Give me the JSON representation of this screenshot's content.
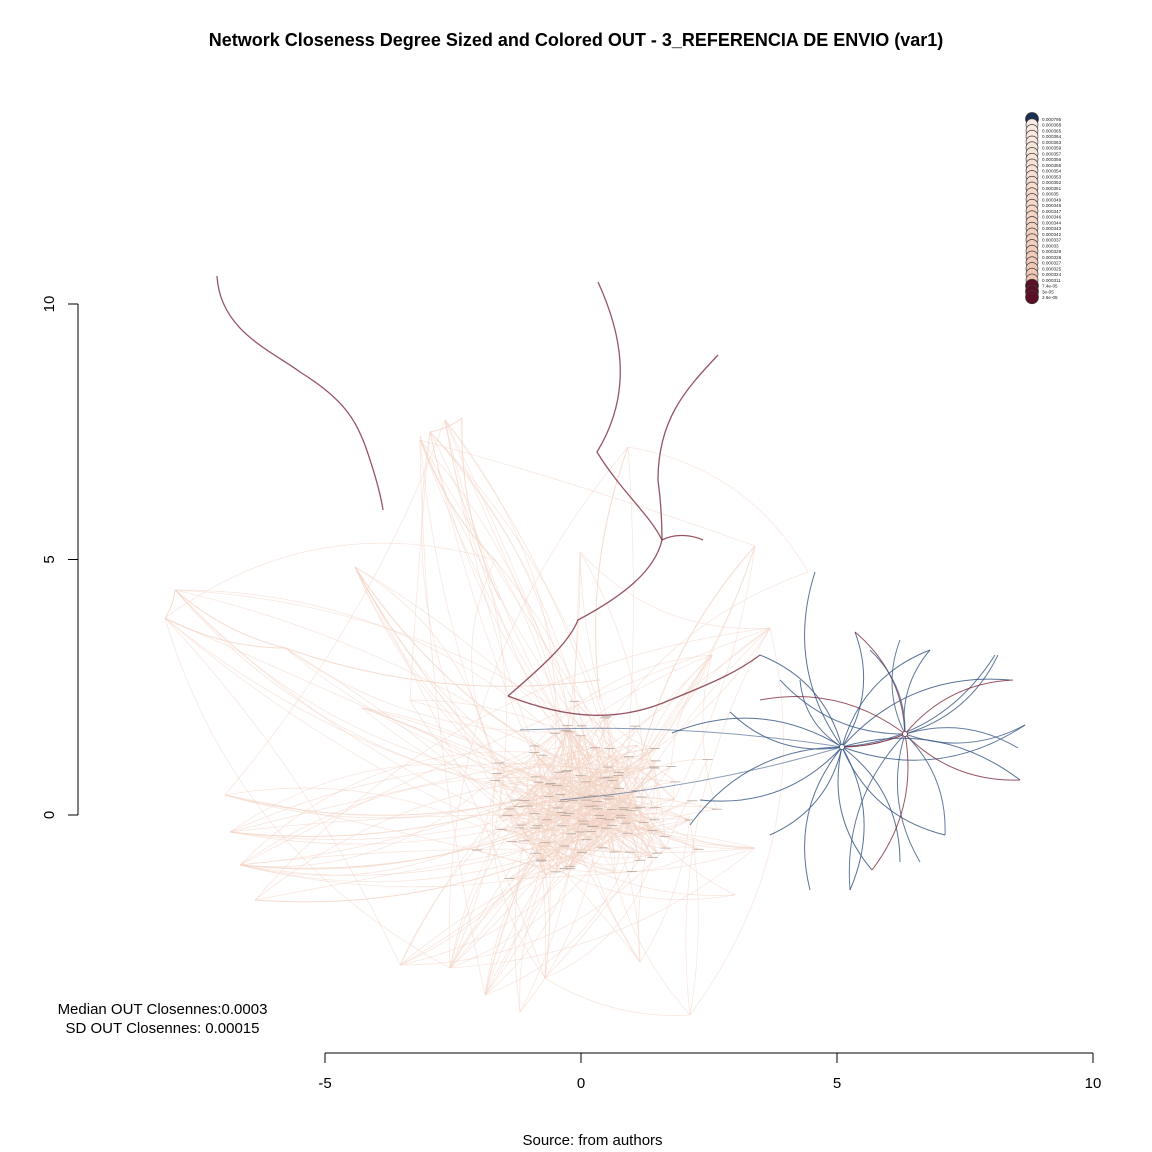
{
  "title": "Network Closeness Degree Sized and Colored OUT - 3_REFERENCIA DE ENVIO (var1)",
  "stats": {
    "median": "Median OUT Closennes:0.0003",
    "sd": "SD OUT Closennes: 0.00015"
  },
  "caption": "Source: from authors",
  "colors": {
    "edge_light": "#f3d3c4",
    "edge_dark_red": "#7d2a3c",
    "edge_blue": "#3c5a86",
    "legend_top": "#1b2f52",
    "legend_bottom": "#5b0f26"
  },
  "chart_data": {
    "type": "network",
    "xlim": [
      -5,
      10
    ],
    "ylim": [
      0,
      10
    ],
    "x_ticks": [
      "-5",
      "0",
      "5",
      "10"
    ],
    "y_ticks": [
      "0",
      "5",
      "10"
    ],
    "legend_position": "top-right",
    "legend": [
      "0.000795",
      "0.000368",
      "0.000365",
      "0.000364",
      "0.000363",
      "0.000359",
      "0.000357",
      "0.000356",
      "0.000355",
      "0.000354",
      "0.000353",
      "0.000352",
      "0.000351",
      "0.00035",
      "0.000349",
      "0.000348",
      "0.000347",
      "0.000346",
      "0.000344",
      "0.000343",
      "0.000342",
      "0.000337",
      "0.00033",
      "0.000329",
      "0.000328",
      "0.000327",
      "0.000325",
      "0.000324",
      "0.000311",
      "7.4e-05",
      "3e-05",
      "2.6e-05"
    ]
  }
}
